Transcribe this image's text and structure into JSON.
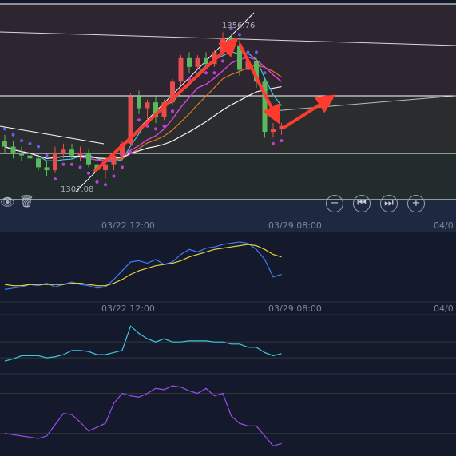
{
  "toolbar": {
    "eye_icon": "eye-icon",
    "trash_icon": "trash-icon",
    "controls": [
      {
        "name": "zoom-out-button",
        "glyph": "−"
      },
      {
        "name": "scroll-start-button",
        "glyph": "⏮"
      },
      {
        "name": "scroll-end-button",
        "glyph": "⏭"
      },
      {
        "name": "zoom-in-button",
        "glyph": "+"
      }
    ]
  },
  "colors": {
    "background": "#141a2b",
    "upper_zone": "#2d2530",
    "middle_zone": "#2a2c2e",
    "lower_zone": "#232c2c",
    "candle_up": "#e84d4d",
    "candle_down": "#5cb85c",
    "sar": "#6a5cf0",
    "sar_low": "#c43cdc",
    "ma_fast": "#40c8d8",
    "ma_mid": "#e07a20",
    "ma_slow": "#e040e0",
    "ma_long": "#f2f2f2",
    "arrow": "#ff3b30",
    "osc1_fast": "#3b7bff",
    "osc1_slow": "#e6d33a",
    "osc2": "#3fc8dc",
    "osc3": "#9a4cf0"
  },
  "chart_data": [
    {
      "type": "candlestick",
      "annotations": [
        {
          "text": "1356.76",
          "kind": "high-label"
        },
        {
          "text": "1307.08",
          "kind": "low-label"
        }
      ],
      "x_ticks": [
        "03/22 12:00",
        "03/29 08:00",
        "04/0"
      ],
      "candles": [
        {
          "o": 1320,
          "h": 1322,
          "l": 1316,
          "c": 1318
        },
        {
          "o": 1318,
          "h": 1320,
          "l": 1314,
          "c": 1316
        },
        {
          "o": 1316,
          "h": 1318,
          "l": 1313,
          "c": 1315
        },
        {
          "o": 1315,
          "h": 1317,
          "l": 1312,
          "c": 1314
        },
        {
          "o": 1314,
          "h": 1316,
          "l": 1310,
          "c": 1311
        },
        {
          "o": 1311,
          "h": 1313,
          "l": 1308,
          "c": 1310
        },
        {
          "o": 1310,
          "h": 1318,
          "l": 1309,
          "c": 1316
        },
        {
          "o": 1316,
          "h": 1319,
          "l": 1314,
          "c": 1317
        },
        {
          "o": 1317,
          "h": 1319,
          "l": 1314,
          "c": 1315
        },
        {
          "o": 1315,
          "h": 1318,
          "l": 1313,
          "c": 1316
        },
        {
          "o": 1316,
          "h": 1317,
          "l": 1311,
          "c": 1312
        },
        {
          "o": 1312,
          "h": 1314,
          "l": 1308,
          "c": 1310
        },
        {
          "o": 1310,
          "h": 1313,
          "l": 1307.08,
          "c": 1312
        },
        {
          "o": 1312,
          "h": 1316,
          "l": 1310,
          "c": 1315
        },
        {
          "o": 1315,
          "h": 1320,
          "l": 1313,
          "c": 1319
        },
        {
          "o": 1319,
          "h": 1336,
          "l": 1318,
          "c": 1335
        },
        {
          "o": 1335,
          "h": 1337,
          "l": 1329,
          "c": 1331
        },
        {
          "o": 1331,
          "h": 1334,
          "l": 1327,
          "c": 1333
        },
        {
          "o": 1333,
          "h": 1335,
          "l": 1326,
          "c": 1328
        },
        {
          "o": 1328,
          "h": 1334,
          "l": 1327,
          "c": 1333
        },
        {
          "o": 1333,
          "h": 1341,
          "l": 1332,
          "c": 1340
        },
        {
          "o": 1340,
          "h": 1349,
          "l": 1339,
          "c": 1348
        },
        {
          "o": 1348,
          "h": 1350,
          "l": 1343,
          "c": 1345
        },
        {
          "o": 1345,
          "h": 1349,
          "l": 1344,
          "c": 1348
        },
        {
          "o": 1348,
          "h": 1350,
          "l": 1345,
          "c": 1346
        },
        {
          "o": 1346,
          "h": 1351,
          "l": 1345,
          "c": 1350
        },
        {
          "o": 1350,
          "h": 1356.76,
          "l": 1349,
          "c": 1355
        },
        {
          "o": 1355,
          "h": 1356,
          "l": 1350,
          "c": 1352
        },
        {
          "o": 1352,
          "h": 1354,
          "l": 1342,
          "c": 1344
        },
        {
          "o": 1344,
          "h": 1348,
          "l": 1342,
          "c": 1347
        },
        {
          "o": 1347,
          "h": 1348,
          "l": 1338,
          "c": 1340
        },
        {
          "o": 1340,
          "h": 1341,
          "l": 1321,
          "c": 1323
        },
        {
          "o": 1323,
          "h": 1326,
          "l": 1321,
          "c": 1324
        },
        {
          "o": 1324,
          "h": 1326,
          "l": 1322,
          "c": 1325
        }
      ]
    },
    {
      "type": "line",
      "x_ticks": [
        "03/22 12:00",
        "03/29 08:00",
        "04/0"
      ],
      "series": [
        {
          "color_key": "osc1_fast",
          "values": [
            40,
            41,
            42,
            44,
            43,
            45,
            42,
            44,
            46,
            44,
            43,
            41,
            42,
            48,
            55,
            62,
            63,
            61,
            64,
            60,
            62,
            68,
            72,
            70,
            73,
            74,
            76,
            77,
            78,
            77,
            72,
            64,
            50,
            52
          ]
        },
        {
          "color_key": "osc1_slow",
          "values": [
            44,
            43,
            43,
            44,
            44,
            44,
            44,
            44,
            45,
            45,
            44,
            43,
            43,
            45,
            48,
            52,
            55,
            57,
            59,
            60,
            61,
            63,
            66,
            68,
            70,
            72,
            73,
            74,
            75,
            76,
            75,
            72,
            68,
            66
          ]
        }
      ]
    },
    {
      "type": "line",
      "series": [
        {
          "color_key": "osc2",
          "values": [
            42,
            44,
            47,
            47,
            47,
            45,
            46,
            48,
            52,
            52,
            51,
            48,
            48,
            50,
            52,
            75,
            68,
            63,
            60,
            63,
            60,
            60,
            61,
            61,
            61,
            60,
            60,
            58,
            58,
            55,
            55,
            50,
            47,
            49
          ]
        }
      ]
    },
    {
      "type": "line",
      "series": [
        {
          "color_key": "osc3",
          "values": [
            28,
            27,
            26,
            25,
            24,
            26,
            35,
            44,
            43,
            37,
            30,
            33,
            36,
            52,
            60,
            58,
            57,
            60,
            64,
            63,
            66,
            65,
            62,
            60,
            64,
            58,
            60,
            42,
            36,
            34,
            34,
            26,
            18,
            20
          ]
        }
      ]
    }
  ]
}
